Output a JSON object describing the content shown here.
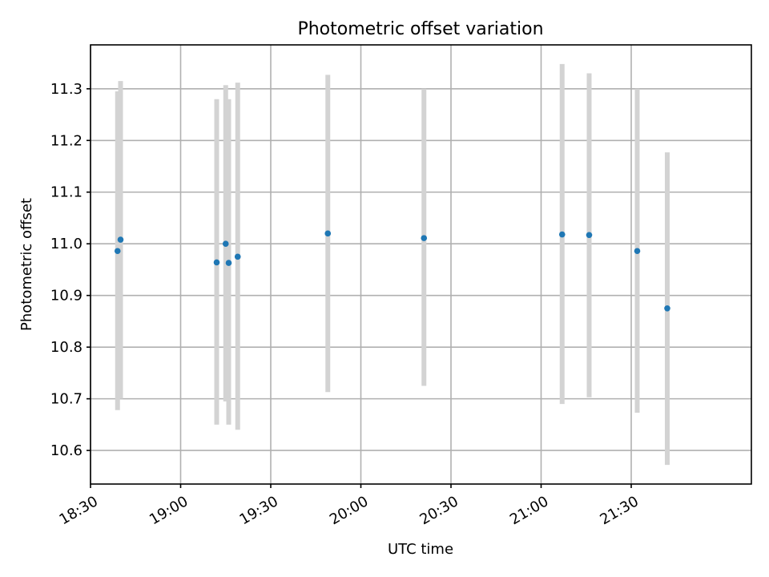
{
  "chart_data": {
    "type": "scatter",
    "title": "Photometric offset variation",
    "xlabel": "UTC time",
    "ylabel": "Photometric offset",
    "xlim": [
      "18:30",
      "22:10"
    ],
    "ylim": [
      10.535,
      11.385
    ],
    "x_ticks": [
      "18:30",
      "19:00",
      "19:30",
      "20:00",
      "20:30",
      "21:00",
      "21:30"
    ],
    "y_ticks": [
      "10.6",
      "10.7",
      "10.8",
      "10.9",
      "11.0",
      "11.1",
      "11.2",
      "11.3"
    ],
    "grid": true,
    "error_bar_color": "#d3d3d3",
    "marker_color": "#1f77b4",
    "series": [
      {
        "points": [
          {
            "x": "18:39",
            "y": 10.986,
            "ylow": 10.678,
            "yhigh": 11.295
          },
          {
            "x": "18:40",
            "y": 11.008,
            "ylow": 10.7,
            "yhigh": 11.315
          },
          {
            "x": "19:12",
            "y": 10.964,
            "ylow": 10.65,
            "yhigh": 11.28
          },
          {
            "x": "19:15",
            "y": 11.0,
            "ylow": 10.695,
            "yhigh": 11.307
          },
          {
            "x": "19:16",
            "y": 10.963,
            "ylow": 10.65,
            "yhigh": 11.28
          },
          {
            "x": "19:19",
            "y": 10.975,
            "ylow": 10.64,
            "yhigh": 11.312
          },
          {
            "x": "19:49",
            "y": 11.02,
            "ylow": 10.713,
            "yhigh": 11.327
          },
          {
            "x": "20:21",
            "y": 11.011,
            "ylow": 10.725,
            "yhigh": 11.3
          },
          {
            "x": "21:07",
            "y": 11.018,
            "ylow": 10.69,
            "yhigh": 11.348
          },
          {
            "x": "21:16",
            "y": 11.017,
            "ylow": 10.703,
            "yhigh": 11.33
          },
          {
            "x": "21:32",
            "y": 10.986,
            "ylow": 10.673,
            "yhigh": 11.3
          },
          {
            "x": "21:42",
            "y": 10.875,
            "ylow": 10.572,
            "yhigh": 11.177
          }
        ]
      }
    ]
  }
}
